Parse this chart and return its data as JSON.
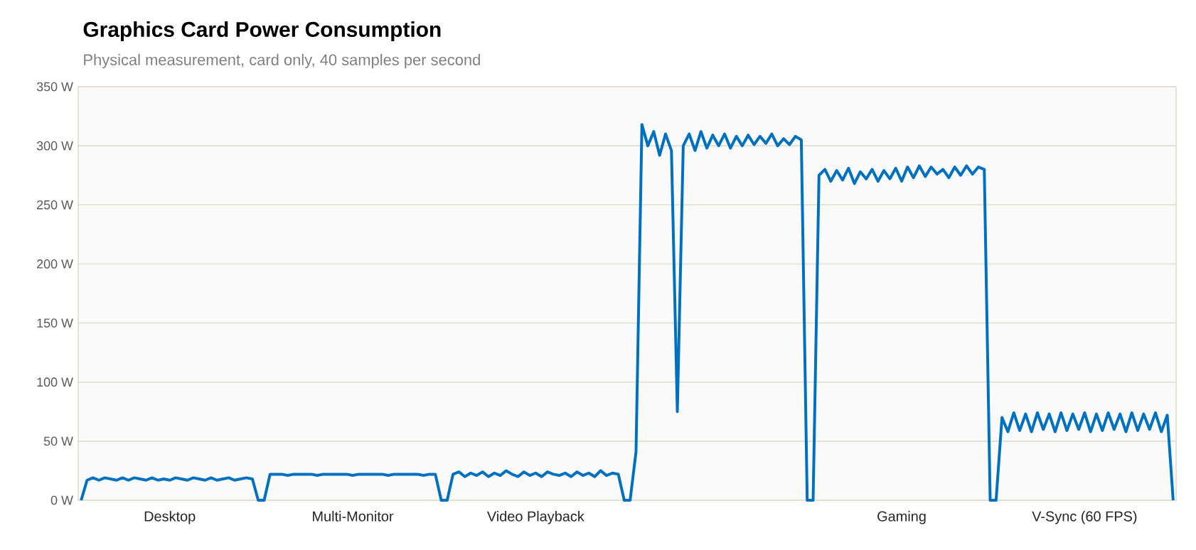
{
  "chart_data": {
    "type": "line",
    "title": "Graphics Card Power Consumption",
    "subtitle": "Physical measurement, card only, 40 samples per second",
    "categories": [
      null,
      null,
      null,
      null,
      null,
      null,
      null,
      null,
      null,
      null,
      null,
      null,
      null,
      null,
      null,
      "Desktop",
      null,
      null,
      null,
      null,
      null,
      null,
      null,
      null,
      null,
      null,
      null,
      null,
      null,
      null,
      null,
      null,
      null,
      null,
      null,
      null,
      null,
      null,
      null,
      null,
      null,
      null,
      null,
      null,
      null,
      null,
      "Multi-Monitor",
      null,
      null,
      null,
      null,
      null,
      null,
      null,
      null,
      null,
      null,
      null,
      null,
      null,
      null,
      null,
      null,
      null,
      null,
      null,
      null,
      null,
      null,
      null,
      null,
      null,
      null,
      null,
      null,
      null,
      null,
      "Video Playback",
      null,
      null,
      null,
      null,
      null,
      null,
      null,
      null,
      null,
      null,
      null,
      null,
      null,
      null,
      null,
      null,
      null,
      null,
      null,
      null,
      null,
      null,
      null,
      null,
      null,
      null,
      null,
      null,
      null,
      null,
      null,
      null,
      null,
      null,
      null,
      null,
      null,
      null,
      null,
      null,
      null,
      null,
      null,
      null,
      null,
      null,
      null,
      null,
      null,
      null,
      null,
      null,
      null,
      null,
      null,
      null,
      null,
      null,
      null,
      null,
      null,
      "Gaming",
      null,
      null,
      null,
      null,
      null,
      null,
      null,
      null,
      null,
      null,
      null,
      null,
      null,
      null,
      null,
      null,
      null,
      null,
      null,
      null,
      null,
      null,
      null,
      null,
      null,
      null,
      null,
      null,
      null,
      null,
      "V-Sync (60 FPS)",
      null,
      null,
      null,
      null,
      null,
      null,
      null,
      null,
      null,
      null,
      null,
      null,
      null,
      null,
      null
    ],
    "ylim": [
      0,
      350
    ],
    "yticks": [
      {
        "value": 0,
        "label": "0 W"
      },
      {
        "value": 50,
        "label": "50 W"
      },
      {
        "value": 100,
        "label": "100 W"
      },
      {
        "value": 150,
        "label": "150 W"
      },
      {
        "value": 200,
        "label": "200 W"
      },
      {
        "value": 250,
        "label": "250 W"
      },
      {
        "value": 300,
        "label": "300 W"
      },
      {
        "value": 350,
        "label": "350 W"
      }
    ],
    "grid": "y",
    "line_style": "solid",
    "color": "#0070c0",
    "values": [
      0,
      17,
      19,
      17,
      19,
      18,
      17,
      19,
      17,
      19,
      18,
      17,
      19,
      17,
      18,
      17,
      19,
      18,
      17,
      19,
      18,
      17,
      19,
      17,
      18,
      19,
      17,
      18,
      19,
      18,
      0,
      0,
      22,
      22,
      22,
      21,
      22,
      22,
      22,
      22,
      21,
      22,
      22,
      22,
      22,
      22,
      21,
      22,
      22,
      22,
      22,
      22,
      21,
      22,
      22,
      22,
      22,
      22,
      21,
      22,
      22,
      0,
      0,
      22,
      24,
      20,
      23,
      21,
      24,
      20,
      23,
      21,
      25,
      22,
      20,
      24,
      21,
      23,
      20,
      24,
      22,
      21,
      23,
      20,
      24,
      21,
      23,
      20,
      25,
      21,
      23,
      22,
      0,
      0,
      41,
      318,
      300,
      312,
      292,
      310,
      296,
      75,
      300,
      310,
      296,
      312,
      298,
      309,
      300,
      310,
      298,
      308,
      300,
      309,
      301,
      308,
      302,
      310,
      300,
      306,
      301,
      308,
      305,
      0,
      0,
      275,
      280,
      270,
      279,
      271,
      281,
      268,
      278,
      272,
      280,
      270,
      279,
      272,
      281,
      270,
      282,
      273,
      283,
      274,
      282,
      276,
      280,
      273,
      282,
      275,
      283,
      276,
      282,
      280,
      0,
      0,
      70,
      58,
      74,
      59,
      73,
      58,
      74,
      60,
      73,
      58,
      74,
      59,
      73,
      60,
      74,
      58,
      73,
      59,
      74,
      60,
      73,
      58,
      74,
      59,
      73,
      60,
      74,
      58,
      72,
      0
    ]
  }
}
